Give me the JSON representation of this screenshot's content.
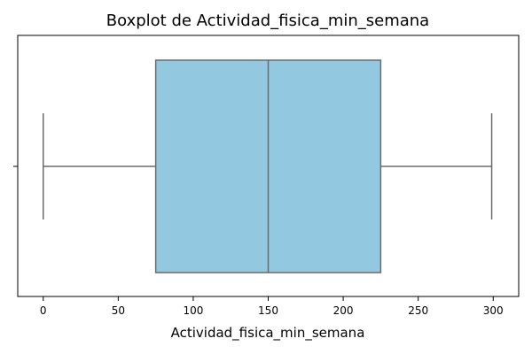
{
  "chart_data": {
    "type": "boxplot",
    "title": "Boxplot de Actividad_fisica_min_semana",
    "xlabel": "Actividad_fisica_min_semana",
    "ylabel": "",
    "xlim": [
      -17,
      317
    ],
    "x_ticks": [
      0,
      50,
      100,
      150,
      200,
      250,
      300
    ],
    "y_ticks": [
      ""
    ],
    "grid": false,
    "legend": false,
    "orientation": "horizontal",
    "box": {
      "whisker_low": 0,
      "q1": 75,
      "median": 150,
      "q3": 225,
      "whisker_high": 299
    },
    "colors": {
      "box_fill": "#92c9e0",
      "line": "#6b6b6b",
      "axis": "#000000"
    }
  }
}
